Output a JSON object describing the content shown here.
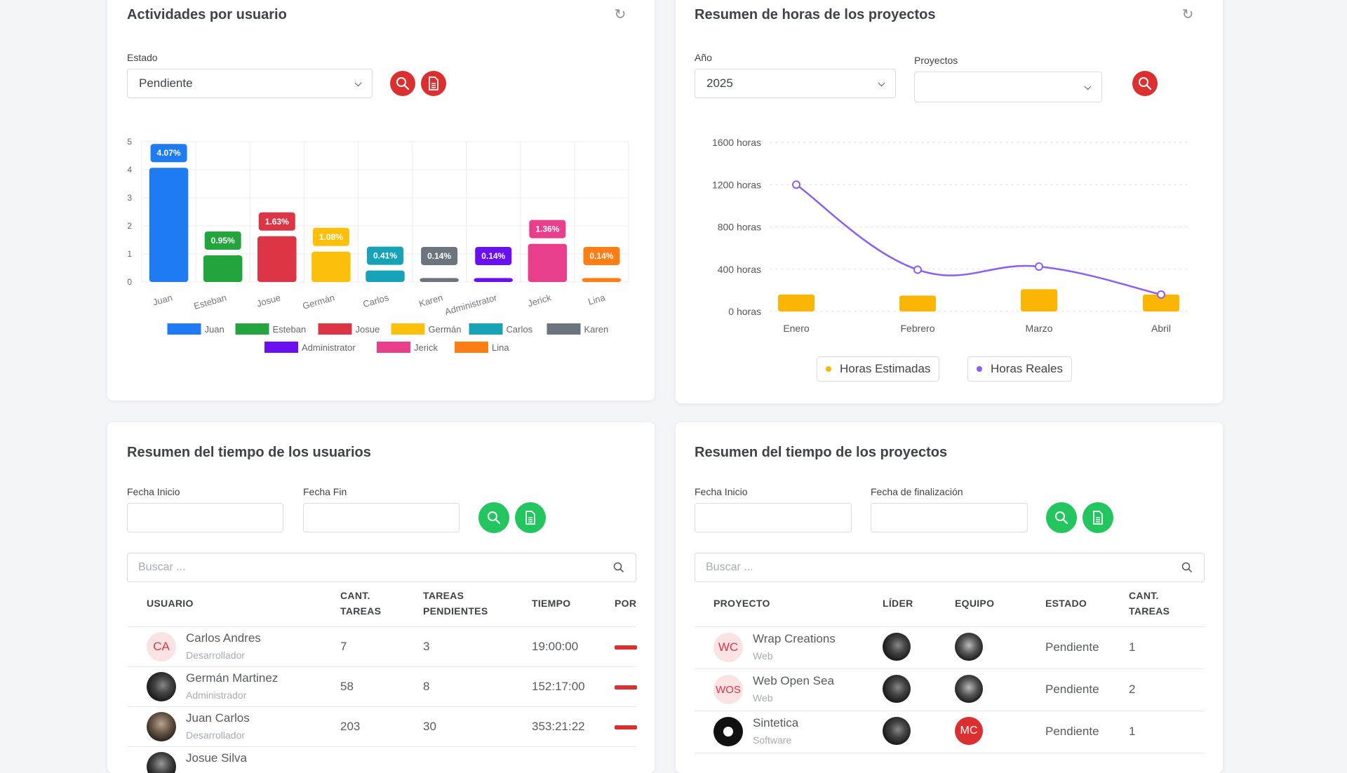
{
  "card1": {
    "title": "Actividades por usuario",
    "estado_label": "Estado",
    "estado_value": "Pendiente"
  },
  "card2": {
    "title": "Resumen de horas de los proyectos",
    "anio_label": "Año",
    "anio_value": "2025",
    "proyectos_label": "Proyectos",
    "proyectos_value": ""
  },
  "card3": {
    "title": "Resumen del tiempo de los usuarios",
    "fecha_inicio_label": "Fecha Inicio",
    "fecha_fin_label": "Fecha Fin",
    "search_placeholder": "Buscar ...",
    "headers": [
      "USUARIO",
      "CANT. TAREAS",
      "TAREAS PENDIENTES",
      "TIEMPO",
      "POR"
    ],
    "rows": [
      {
        "initials": "CA",
        "name": "Carlos Andres",
        "role": "Desarrollador",
        "tareas": "7",
        "pendientes": "3",
        "tiempo": "19:00:00"
      },
      {
        "initials": "",
        "name": "Germán Martinez",
        "role": "Administrador",
        "tareas": "58",
        "pendientes": "8",
        "tiempo": "152:17:00"
      },
      {
        "initials": "",
        "name": "Juan Carlos",
        "role": "Desarrollador",
        "tareas": "203",
        "pendientes": "30",
        "tiempo": "353:21:22"
      },
      {
        "initials": "",
        "name": "Josue Silva",
        "role": "",
        "tareas": "",
        "pendientes": "",
        "tiempo": ""
      }
    ]
  },
  "card4": {
    "title": "Resumen del tiempo de los proyectos",
    "fecha_inicio_label": "Fecha Inicio",
    "fecha_fin_label": "Fecha de finalización",
    "search_placeholder": "Buscar ...",
    "headers": [
      "PROYECTO",
      "LÍDER",
      "EQUIPO",
      "ESTADO",
      "CANT. TAREAS"
    ],
    "rows": [
      {
        "initials": "WC",
        "name": "Wrap Creations",
        "type": "Web",
        "estado": "Pendiente",
        "cant": "1",
        "team_initials": ""
      },
      {
        "initials": "WOS",
        "name": "Web Open Sea",
        "type": "Web",
        "estado": "Pendiente",
        "cant": "2",
        "team_initials": ""
      },
      {
        "initials": "",
        "name": "Sintetica",
        "type": "Software",
        "estado": "Pendiente",
        "cant": "1",
        "team_initials": "MC"
      }
    ]
  },
  "chart_data": [
    {
      "type": "bar",
      "categories": [
        "Juan",
        "Esteban",
        "Josue",
        "Germán",
        "Carlos",
        "Karen",
        "Administrator",
        "Jerick",
        "Lina"
      ],
      "values": [
        4.07,
        0.95,
        1.63,
        1.08,
        0.41,
        0.14,
        0.14,
        1.36,
        0.14
      ],
      "data_labels": [
        "4.07%",
        "0.95%",
        "1.63%",
        "1.08%",
        "0.41%",
        "0.14%",
        "0.14%",
        "1.36%",
        "0.14%"
      ],
      "colors": [
        "#1e7bf2",
        "#22a53c",
        "#dc3545",
        "#fcc00a",
        "#16a3b8",
        "#6c757d",
        "#6a0ff0",
        "#e83e8c",
        "#fd7e14"
      ],
      "yticks": [
        "0",
        "1",
        "2",
        "3",
        "4",
        "5"
      ],
      "ylim": [
        0,
        5
      ],
      "legend": "bottom",
      "grid": true
    },
    {
      "type": "bar",
      "categories": [
        "Enero",
        "Febrero",
        "Marzo",
        "Abril"
      ],
      "series": [
        {
          "name": "Horas Estimadas",
          "kind": "bar",
          "color": "#fbb505",
          "values": [
            160,
            150,
            210,
            160
          ]
        },
        {
          "name": "Horas Reales",
          "kind": "line",
          "color": "#8b5cf6",
          "values": [
            1200,
            395,
            425,
            160
          ]
        }
      ],
      "yticks": [
        "0 horas",
        "400 horas",
        "800 horas",
        "1200 horas",
        "1600 horas"
      ],
      "ylim": [
        0,
        1600
      ],
      "legend": "bottom",
      "grid": true
    }
  ]
}
